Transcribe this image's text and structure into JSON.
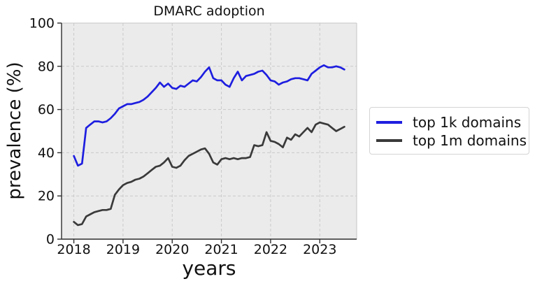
{
  "chart_data": {
    "type": "line",
    "title": "DMARC adoption",
    "xlabel": "years",
    "ylabel": "prevalence (%)",
    "xlim": [
      2017.75,
      2023.75
    ],
    "ylim": [
      0,
      100
    ],
    "xticks": [
      2018,
      2019,
      2020,
      2021,
      2022,
      2023
    ],
    "yticks": [
      0,
      20,
      40,
      60,
      80,
      100
    ],
    "grid": {
      "visible": true,
      "style": "dashed"
    },
    "legend_position": "outside-right-center",
    "x_start_year": 2018,
    "x_interval": "monthly",
    "series": [
      {
        "name": "top 1k domains",
        "color": "#1e1ee0",
        "values": [
          38.5,
          34,
          35,
          51.5,
          53,
          54.5,
          54.5,
          54,
          54.5,
          56,
          58,
          60.5,
          61.5,
          62.5,
          62.5,
          63,
          63.5,
          64.5,
          66,
          68,
          70,
          72.5,
          70.5,
          72,
          70,
          69.5,
          71,
          70.5,
          72,
          73.5,
          73,
          75,
          77.5,
          79.5,
          74.5,
          73.5,
          73.5,
          71.5,
          70.5,
          74.5,
          77.5,
          73.5,
          75.5,
          76,
          76.5,
          77.5,
          78,
          76,
          73.5,
          73,
          71.5,
          72.5,
          73,
          74,
          74.5,
          74.5,
          74,
          73.5,
          76.5,
          78,
          79.5,
          80.5,
          79.5,
          79.5,
          80,
          79.5,
          78.5
        ]
      },
      {
        "name": "top 1m domains",
        "color": "#3a3a3a",
        "values": [
          8,
          6.5,
          7,
          10.5,
          11.5,
          12.5,
          13,
          13.5,
          13.5,
          14,
          20.5,
          23,
          25,
          26,
          26.5,
          27.5,
          28,
          29,
          30.5,
          32,
          33.5,
          34,
          35.5,
          37.5,
          33.5,
          33,
          34,
          36.5,
          38.5,
          39.5,
          40.5,
          41.5,
          42,
          39.5,
          35.5,
          34.5,
          37,
          37.5,
          37,
          37.5,
          37,
          37.5,
          37.5,
          38,
          43.5,
          43,
          43.5,
          49.5,
          45.5,
          45,
          44,
          42.5,
          47,
          46,
          48.5,
          47.5,
          49.5,
          51.5,
          49.5,
          53,
          54,
          53.5,
          53,
          51.5,
          50,
          51,
          52
        ]
      }
    ]
  },
  "style": {
    "plot_bg": "#ebebeb",
    "grid_color": "#c9c9c9",
    "spine_dark": "#2e2e2e",
    "spine_light": "#c6c6c6",
    "tick_color": "#2e2e2e",
    "text_color": "#111111",
    "legend_bg": "#ffffff",
    "legend_border": "#d4d4d4"
  }
}
